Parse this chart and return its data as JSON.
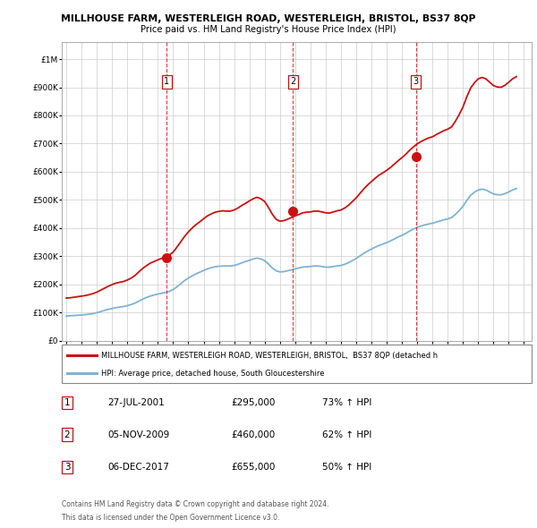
{
  "title1": "MILLHOUSE FARM, WESTERLEIGH ROAD, WESTERLEIGH, BRISTOL, BS37 8QP",
  "title2": "Price paid vs. HM Land Registry's House Price Index (HPI)",
  "yticks": [
    0,
    100000,
    200000,
    300000,
    400000,
    500000,
    600000,
    700000,
    800000,
    900000,
    1000000
  ],
  "ytick_labels": [
    "£0",
    "£100K",
    "£200K",
    "£300K",
    "£400K",
    "£500K",
    "£600K",
    "£700K",
    "£800K",
    "£900K",
    "£1M"
  ],
  "xlim_start": 1994.7,
  "xlim_end": 2025.5,
  "ylim": [
    0,
    1060000
  ],
  "hpi_color": "#7fb3d3",
  "price_color": "#cc1111",
  "transaction_color": "#cc1111",
  "background_color": "#ffffff",
  "grid_color": "#cccccc",
  "transactions": [
    {
      "label": "1",
      "date_decimal": 2001.57,
      "price": 295000
    },
    {
      "label": "2",
      "date_decimal": 2009.84,
      "price": 460000
    },
    {
      "label": "3",
      "date_decimal": 2017.92,
      "price": 655000
    }
  ],
  "transaction_display": [
    {
      "num": "1",
      "date": "27-JUL-2001",
      "price": "£295,000",
      "hpi": "73% ↑ HPI"
    },
    {
      "num": "2",
      "date": "05-NOV-2009",
      "price": "£460,000",
      "hpi": "62% ↑ HPI"
    },
    {
      "num": "3",
      "date": "06-DEC-2017",
      "price": "£655,000",
      "hpi": "50% ↑ HPI"
    }
  ],
  "legend_line1": "MILLHOUSE FARM, WESTERLEIGH ROAD, WESTERLEIGH, BRISTOL,  BS37 8QP (detached h",
  "legend_line2": "HPI: Average price, detached house, South Gloucestershire",
  "footer1": "Contains HM Land Registry data © Crown copyright and database right 2024.",
  "footer2": "This data is licensed under the Open Government Licence v3.0.",
  "hpi_data_x": [
    1995.0,
    1995.25,
    1995.5,
    1995.75,
    1996.0,
    1996.25,
    1996.5,
    1996.75,
    1997.0,
    1997.25,
    1997.5,
    1997.75,
    1998.0,
    1998.25,
    1998.5,
    1998.75,
    1999.0,
    1999.25,
    1999.5,
    1999.75,
    2000.0,
    2000.25,
    2000.5,
    2000.75,
    2001.0,
    2001.25,
    2001.5,
    2001.75,
    2002.0,
    2002.25,
    2002.5,
    2002.75,
    2003.0,
    2003.25,
    2003.5,
    2003.75,
    2004.0,
    2004.25,
    2004.5,
    2004.75,
    2005.0,
    2005.25,
    2005.5,
    2005.75,
    2006.0,
    2006.25,
    2006.5,
    2006.75,
    2007.0,
    2007.25,
    2007.5,
    2007.75,
    2008.0,
    2008.25,
    2008.5,
    2008.75,
    2009.0,
    2009.25,
    2009.5,
    2009.75,
    2010.0,
    2010.25,
    2010.5,
    2010.75,
    2011.0,
    2011.25,
    2011.5,
    2011.75,
    2012.0,
    2012.25,
    2012.5,
    2012.75,
    2013.0,
    2013.25,
    2013.5,
    2013.75,
    2014.0,
    2014.25,
    2014.5,
    2014.75,
    2015.0,
    2015.25,
    2015.5,
    2015.75,
    2016.0,
    2016.25,
    2016.5,
    2016.75,
    2017.0,
    2017.25,
    2017.5,
    2017.75,
    2018.0,
    2018.25,
    2018.5,
    2018.75,
    2019.0,
    2019.25,
    2019.5,
    2019.75,
    2020.0,
    2020.25,
    2020.5,
    2020.75,
    2021.0,
    2021.25,
    2021.5,
    2021.75,
    2022.0,
    2022.25,
    2022.5,
    2022.75,
    2023.0,
    2023.25,
    2023.5,
    2023.75,
    2024.0,
    2024.25,
    2024.5
  ],
  "hpi_data_y": [
    87000,
    88000,
    89000,
    90000,
    91000,
    92000,
    94000,
    96000,
    99000,
    103000,
    107000,
    111000,
    114000,
    117000,
    119000,
    121000,
    124000,
    128000,
    133000,
    140000,
    147000,
    153000,
    158000,
    162000,
    165000,
    168000,
    171000,
    175000,
    181000,
    191000,
    202000,
    213000,
    222000,
    230000,
    237000,
    243000,
    249000,
    255000,
    259000,
    262000,
    264000,
    265000,
    265000,
    265000,
    267000,
    271000,
    276000,
    281000,
    285000,
    290000,
    293000,
    290000,
    284000,
    272000,
    258000,
    248000,
    244000,
    245000,
    248000,
    251000,
    255000,
    258000,
    261000,
    262000,
    263000,
    265000,
    265000,
    263000,
    261000,
    261000,
    263000,
    265000,
    267000,
    271000,
    277000,
    284000,
    292000,
    301000,
    310000,
    318000,
    325000,
    332000,
    338000,
    343000,
    348000,
    354000,
    361000,
    368000,
    374000,
    381000,
    389000,
    396000,
    402000,
    407000,
    411000,
    414000,
    417000,
    421000,
    425000,
    429000,
    432000,
    437000,
    448000,
    462000,
    477000,
    498000,
    516000,
    527000,
    535000,
    538000,
    535000,
    528000,
    521000,
    518000,
    518000,
    522000,
    528000,
    535000,
    540000
  ],
  "price_hpi_y": [
    151000,
    152000,
    154000,
    156000,
    158000,
    160000,
    163000,
    167000,
    172000,
    179000,
    186000,
    193000,
    199000,
    204000,
    207000,
    210000,
    215000,
    222000,
    231000,
    244000,
    256000,
    266000,
    275000,
    281000,
    287000,
    292000,
    297000,
    304000,
    314000,
    332000,
    351000,
    370000,
    386000,
    400000,
    412000,
    422000,
    433000,
    443000,
    450000,
    456000,
    459000,
    461000,
    460000,
    460000,
    464000,
    471000,
    480000,
    488000,
    496000,
    504000,
    509000,
    504000,
    494000,
    473000,
    449000,
    431000,
    424000,
    426000,
    431000,
    437000,
    443000,
    448000,
    454000,
    456000,
    457000,
    460000,
    460000,
    457000,
    454000,
    453000,
    457000,
    461000,
    464000,
    471000,
    481000,
    494000,
    507000,
    523000,
    539000,
    553000,
    565000,
    577000,
    588000,
    596000,
    605000,
    615000,
    627000,
    639000,
    650000,
    662000,
    676000,
    688000,
    699000,
    707000,
    714000,
    720000,
    724000,
    732000,
    739000,
    746000,
    751000,
    759000,
    779000,
    803000,
    830000,
    866000,
    897000,
    916000,
    930000,
    935000,
    930000,
    918000,
    906000,
    901000,
    900000,
    907000,
    918000,
    930000,
    938000
  ]
}
